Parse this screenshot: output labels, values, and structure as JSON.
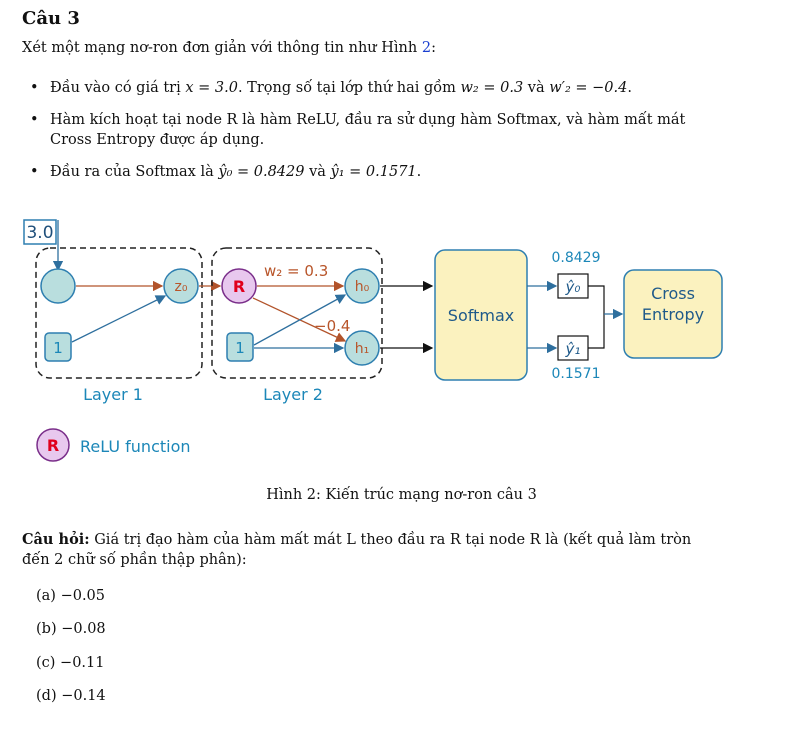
{
  "heading": "Câu 3",
  "intro": {
    "before": "Xét một mạng nơ-ron đơn giản với thông tin như Hình ",
    "ref": "2",
    "after": ":"
  },
  "bullets": {
    "b1": {
      "t1": "Đầu vào có giá trị ",
      "x_eq": "x = 3.0",
      "t2": ". Trọng số tại lớp thứ hai gồm ",
      "w2_eq": "w₂ = 0.3",
      "t3": " và ",
      "w2p_eq": "w′₂ = −0.4",
      "t4": "."
    },
    "b2_line1": "Hàm kích hoạt tại node R là hàm ReLU, đầu ra sử dụng hàm Softmax, và hàm mất mát",
    "b2_line2": "Cross Entropy được áp dụng.",
    "b3": {
      "t1": "Đầu ra của Softmax là ",
      "y0_eq": "ŷ₀ = 0.8429",
      "t2": " và ",
      "y1_eq": "ŷ₁ = 0.1571",
      "t3": "."
    }
  },
  "figure": {
    "input_value": "3.0",
    "bias1": "1",
    "bias2": "1",
    "z0": "z₀",
    "relu_node": "R",
    "h0": "h₀",
    "h1": "h₁",
    "w2_label": "w₂ = 0.3",
    "w2p_label": "−0.4",
    "softmax": "Softmax",
    "y0": "ŷ₀",
    "y1": "ŷ₁",
    "y0_value": "0.8429",
    "y1_value": "0.1571",
    "loss_line1": "Cross",
    "loss_line2": "Entropy",
    "layer1": "Layer 1",
    "layer2": "Layer 2",
    "legend_symbol": "R",
    "legend_text": "ReLU function",
    "caption": "Hình 2: Kiến trúc mạng nơ-ron câu 3",
    "colors": {
      "node_fill": "#b9dede",
      "node_stroke": "#2e7fb0",
      "relu_fill": "#e8c8ee",
      "relu_stroke": "#7a2e8a",
      "relu_text": "#e0001c",
      "softmax_fill": "#fbf2bf",
      "arrow_orange": "#b2532a",
      "text_blue": "#1c87b8",
      "weight_text": "#b8552a"
    }
  },
  "question": {
    "label": "Câu hỏi:",
    "line1": " Giá trị đạo hàm của hàm mất mát L theo đầu ra R tại node R là (kết quả làm tròn",
    "line2": "đến 2 chữ số phần thập phân):"
  },
  "options": [
    {
      "label": "(a)",
      "value": "−0.05"
    },
    {
      "label": "(b)",
      "value": "−0.08"
    },
    {
      "label": "(c)",
      "value": "−0.11"
    },
    {
      "label": "(d)",
      "value": "−0.14"
    }
  ]
}
